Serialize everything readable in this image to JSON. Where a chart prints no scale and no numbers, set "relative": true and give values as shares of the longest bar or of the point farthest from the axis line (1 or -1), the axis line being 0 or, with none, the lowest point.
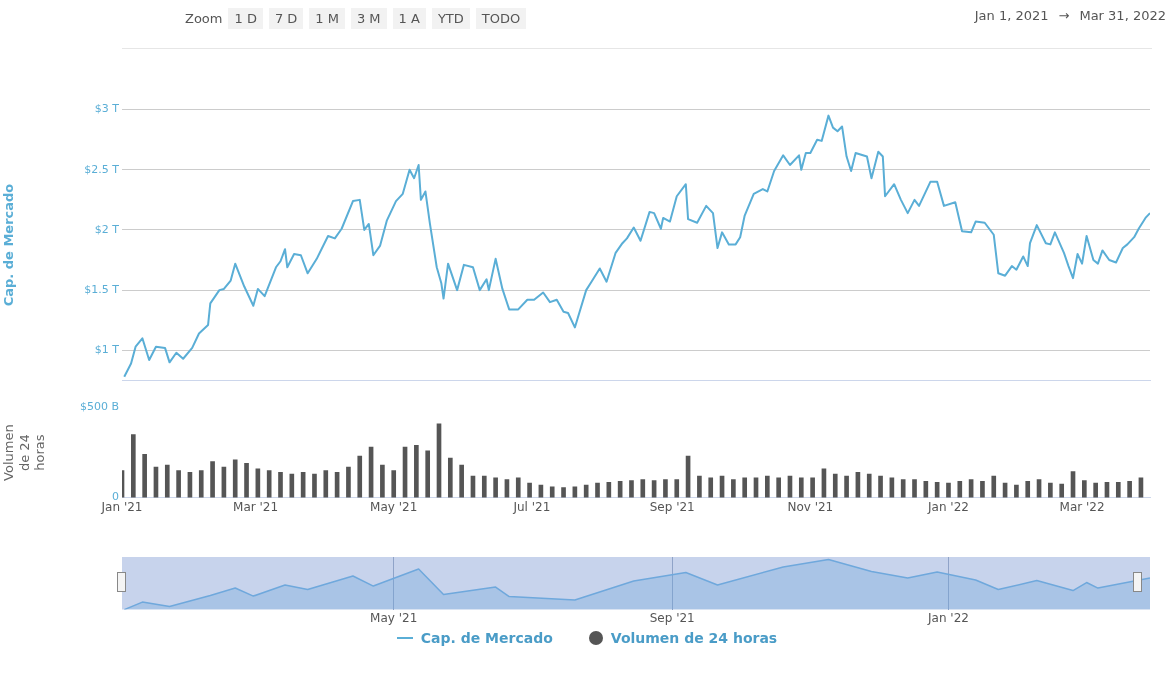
{
  "chart_data": [
    {
      "type": "line",
      "ylabel": "Cap. de Mercado",
      "annotations": [
        "Zoom",
        "1 D",
        "7 D",
        "1 M",
        "3 M",
        "1 A",
        "YTD",
        "TODO",
        "Jan 1, 2021",
        "→",
        "Mar 31, 2022"
      ],
      "xlim": [
        "2021-01-01",
        "2022-03-31"
      ],
      "ylim": [
        0.75,
        3
      ],
      "yticks": [
        {
          "value": 1,
          "label": "$1 T"
        },
        {
          "value": 1.5,
          "label": "$1.5 T"
        },
        {
          "value": 2,
          "label": "$2 T"
        },
        {
          "value": 2.5,
          "label": "$2.5 T"
        },
        {
          "value": 3,
          "label": "$3 T"
        }
      ],
      "grid": "y",
      "tick_labels": "y",
      "legend": "bottom",
      "series": [
        {
          "name": "Cap. de Mercado",
          "color": "#5aaed6",
          "x": [
            "2021-01-02",
            "2021-01-05",
            "2021-01-07",
            "2021-01-10",
            "2021-01-13",
            "2021-01-16",
            "2021-01-20",
            "2021-01-22",
            "2021-01-25",
            "2021-01-28",
            "2021-02-01",
            "2021-02-04",
            "2021-02-08",
            "2021-02-09",
            "2021-02-13",
            "2021-02-15",
            "2021-02-18",
            "2021-02-20",
            "2021-02-24",
            "2021-02-28",
            "2021-03-02",
            "2021-03-05",
            "2021-03-10",
            "2021-03-12",
            "2021-03-14",
            "2021-03-15",
            "2021-03-18",
            "2021-03-21",
            "2021-03-24",
            "2021-03-28",
            "2021-04-02",
            "2021-04-05",
            "2021-04-08",
            "2021-04-13",
            "2021-04-16",
            "2021-04-18",
            "2021-04-20",
            "2021-04-22",
            "2021-04-25",
            "2021-04-28",
            "2021-05-02",
            "2021-05-05",
            "2021-05-08",
            "2021-05-10",
            "2021-05-12",
            "2021-05-13",
            "2021-05-15",
            "2021-05-17",
            "2021-05-20",
            "2021-05-22",
            "2021-05-23",
            "2021-05-25",
            "2021-05-29",
            "2021-06-01",
            "2021-06-05",
            "2021-06-08",
            "2021-06-11",
            "2021-06-12",
            "2021-06-15",
            "2021-06-18",
            "2021-06-21",
            "2021-06-25",
            "2021-06-29",
            "2021-07-02",
            "2021-07-06",
            "2021-07-09",
            "2021-07-12",
            "2021-07-15",
            "2021-07-17",
            "2021-07-20",
            "2021-07-25",
            "2021-07-27",
            "2021-07-31",
            "2021-08-03",
            "2021-08-07",
            "2021-08-10",
            "2021-08-12",
            "2021-08-15",
            "2021-08-18",
            "2021-08-22",
            "2021-08-24",
            "2021-08-27",
            "2021-08-28",
            "2021-08-31",
            "2021-09-03",
            "2021-09-07",
            "2021-09-08",
            "2021-09-12",
            "2021-09-16",
            "2021-09-19",
            "2021-09-21",
            "2021-09-23",
            "2021-09-26",
            "2021-09-29",
            "2021-10-01",
            "2021-10-03",
            "2021-10-07",
            "2021-10-11",
            "2021-10-13",
            "2021-10-16",
            "2021-10-20",
            "2021-10-23",
            "2021-10-27",
            "2021-10-28",
            "2021-10-30",
            "2021-11-01",
            "2021-11-04",
            "2021-11-06",
            "2021-11-09",
            "2021-11-11",
            "2021-11-13",
            "2021-11-15",
            "2021-11-17",
            "2021-11-19",
            "2021-11-21",
            "2021-11-26",
            "2021-11-28",
            "2021-12-01",
            "2021-12-03",
            "2021-12-04",
            "2021-12-08",
            "2021-12-11",
            "2021-12-14",
            "2021-12-17",
            "2021-12-19",
            "2021-12-24",
            "2021-12-27",
            "2021-12-30",
            "2022-01-04",
            "2022-01-07",
            "2022-01-11",
            "2022-01-13",
            "2022-01-17",
            "2022-01-21",
            "2022-01-23",
            "2022-01-26",
            "2022-01-29",
            "2022-01-31",
            "2022-02-03",
            "2022-02-05",
            "2022-02-06",
            "2022-02-09",
            "2022-02-13",
            "2022-02-15",
            "2022-02-17",
            "2022-02-21",
            "2022-02-23",
            "2022-02-25",
            "2022-02-27",
            "2022-03-01",
            "2022-03-03",
            "2022-03-06",
            "2022-03-08",
            "2022-03-10",
            "2022-03-13",
            "2022-03-16",
            "2022-03-19",
            "2022-03-21",
            "2022-03-24",
            "2022-03-26",
            "2022-03-29",
            "2022-03-31"
          ],
          "values": [
            0.78,
            0.89,
            1.03,
            1.1,
            0.92,
            1.03,
            1.02,
            0.9,
            0.98,
            0.93,
            1.02,
            1.14,
            1.21,
            1.39,
            1.5,
            1.51,
            1.58,
            1.72,
            1.53,
            1.37,
            1.51,
            1.45,
            1.69,
            1.74,
            1.84,
            1.69,
            1.8,
            1.79,
            1.64,
            1.76,
            1.95,
            1.93,
            2.01,
            2.24,
            2.25,
            2.0,
            2.05,
            1.79,
            1.87,
            2.08,
            2.24,
            2.3,
            2.5,
            2.43,
            2.54,
            2.25,
            2.32,
            2.05,
            1.69,
            1.56,
            1.43,
            1.72,
            1.5,
            1.71,
            1.69,
            1.5,
            1.59,
            1.5,
            1.76,
            1.51,
            1.34,
            1.34,
            1.42,
            1.42,
            1.48,
            1.4,
            1.42,
            1.32,
            1.31,
            1.19,
            1.5,
            1.56,
            1.68,
            1.57,
            1.81,
            1.89,
            1.93,
            2.02,
            1.91,
            2.15,
            2.14,
            2.01,
            2.1,
            2.07,
            2.28,
            2.38,
            2.09,
            2.06,
            2.2,
            2.14,
            1.85,
            1.98,
            1.88,
            1.88,
            1.94,
            2.12,
            2.3,
            2.34,
            2.32,
            2.49,
            2.62,
            2.54,
            2.62,
            2.5,
            2.64,
            2.64,
            2.75,
            2.74,
            2.95,
            2.85,
            2.82,
            2.86,
            2.61,
            2.49,
            2.64,
            2.61,
            2.43,
            2.65,
            2.61,
            2.28,
            2.38,
            2.25,
            2.14,
            2.25,
            2.2,
            2.4,
            2.4,
            2.2,
            2.23,
            1.99,
            1.98,
            2.07,
            2.06,
            1.96,
            1.64,
            1.62,
            1.7,
            1.67,
            1.78,
            1.7,
            1.89,
            2.04,
            1.89,
            1.88,
            1.98,
            1.81,
            1.7,
            1.6,
            1.8,
            1.72,
            1.95,
            1.75,
            1.72,
            1.83,
            1.75,
            1.73,
            1.85,
            1.88,
            1.94,
            2.01,
            2.1,
            2.14
          ]
        }
      ]
    },
    {
      "type": "bar",
      "ylabel": "Volumen de 24 horas",
      "xlim": [
        "2021-01-01",
        "2022-03-31"
      ],
      "xticks": [
        {
          "value": "2021-01-01",
          "label": "Jan '21"
        },
        {
          "value": "2021-03-01",
          "label": "Mar '21"
        },
        {
          "value": "2021-05-01",
          "label": "May '21"
        },
        {
          "value": "2021-07-01",
          "label": "Jul '21"
        },
        {
          "value": "2021-09-01",
          "label": "Sep '21"
        },
        {
          "value": "2021-11-01",
          "label": "Nov '21"
        },
        {
          "value": "2022-01-01",
          "label": "Jan '22"
        },
        {
          "value": "2022-03-01",
          "label": "Mar '22"
        }
      ],
      "ylim": [
        0,
        500
      ],
      "yticks": [
        0,
        {
          "value": 500,
          "label": "$500 B"
        }
      ],
      "legend": "bottom",
      "series": [
        {
          "name": "Volumen de 24 horas",
          "color": "#555555",
          "x": [
            "2021-01-01",
            "2021-01-06",
            "2021-01-11",
            "2021-01-16",
            "2021-01-21",
            "2021-01-26",
            "2021-01-31",
            "2021-02-05",
            "2021-02-10",
            "2021-02-15",
            "2021-02-20",
            "2021-02-25",
            "2021-03-02",
            "2021-03-07",
            "2021-03-12",
            "2021-03-17",
            "2021-03-22",
            "2021-03-27",
            "2021-04-01",
            "2021-04-06",
            "2021-04-11",
            "2021-04-16",
            "2021-04-21",
            "2021-04-26",
            "2021-05-01",
            "2021-05-06",
            "2021-05-11",
            "2021-05-16",
            "2021-05-21",
            "2021-05-26",
            "2021-05-31",
            "2021-06-05",
            "2021-06-10",
            "2021-06-15",
            "2021-06-20",
            "2021-06-25",
            "2021-06-30",
            "2021-07-05",
            "2021-07-10",
            "2021-07-15",
            "2021-07-20",
            "2021-07-25",
            "2021-07-30",
            "2021-08-04",
            "2021-08-09",
            "2021-08-14",
            "2021-08-19",
            "2021-08-24",
            "2021-08-29",
            "2021-09-03",
            "2021-09-08",
            "2021-09-13",
            "2021-09-18",
            "2021-09-23",
            "2021-09-28",
            "2021-10-03",
            "2021-10-08",
            "2021-10-13",
            "2021-10-18",
            "2021-10-23",
            "2021-10-28",
            "2021-11-02",
            "2021-11-07",
            "2021-11-12",
            "2021-11-17",
            "2021-11-22",
            "2021-11-27",
            "2021-12-02",
            "2021-12-07",
            "2021-12-12",
            "2021-12-17",
            "2021-12-22",
            "2021-12-27",
            "2022-01-01",
            "2022-01-06",
            "2022-01-11",
            "2022-01-16",
            "2022-01-21",
            "2022-01-26",
            "2022-01-31",
            "2022-02-05",
            "2022-02-10",
            "2022-02-15",
            "2022-02-20",
            "2022-02-25",
            "2022-03-02",
            "2022-03-07",
            "2022-03-12",
            "2022-03-17",
            "2022-03-22",
            "2022-03-27"
          ],
          "values": [
            150,
            350,
            240,
            170,
            180,
            150,
            140,
            150,
            200,
            170,
            210,
            190,
            160,
            150,
            140,
            130,
            140,
            130,
            150,
            140,
            170,
            230,
            280,
            180,
            150,
            280,
            290,
            260,
            410,
            220,
            180,
            120,
            120,
            110,
            100,
            110,
            80,
            70,
            60,
            55,
            60,
            70,
            80,
            85,
            90,
            95,
            100,
            95,
            100,
            100,
            230,
            120,
            110,
            120,
            100,
            110,
            110,
            120,
            110,
            120,
            110,
            110,
            160,
            130,
            120,
            140,
            130,
            120,
            110,
            100,
            100,
            90,
            85,
            80,
            90,
            100,
            90,
            120,
            80,
            70,
            90,
            100,
            80,
            75,
            145,
            95,
            80,
            85,
            85,
            90,
            110
          ]
        }
      ]
    },
    {
      "type": "area",
      "relative": true,
      "xlim": [
        "2021-01-01",
        "2022-03-31"
      ],
      "xticks": [
        {
          "value": "2021-05-01",
          "label": "May '21"
        },
        {
          "value": "2021-09-01",
          "label": "Sep '21"
        },
        {
          "value": "2022-01-01",
          "label": "Jan '22"
        }
      ],
      "grid": "x",
      "tick_labels": "x",
      "series": [
        {
          "color": "#6fa8dc",
          "x": [
            "2021-01-02",
            "2021-01-10",
            "2021-01-22",
            "2021-02-09",
            "2021-02-20",
            "2021-02-28",
            "2021-03-14",
            "2021-03-24",
            "2021-04-13",
            "2021-04-22",
            "2021-05-12",
            "2021-05-23",
            "2021-06-15",
            "2021-06-21",
            "2021-07-20",
            "2021-08-15",
            "2021-09-07",
            "2021-09-21",
            "2021-10-20",
            "2021-11-09",
            "2021-11-28",
            "2021-12-14",
            "2021-12-27",
            "2022-01-13",
            "2022-01-23",
            "2022-02-09",
            "2022-02-25",
            "2022-03-03",
            "2022-03-08",
            "2022-03-31"
          ],
          "values": [
            0,
            0.15,
            0.06,
            0.28,
            0.43,
            0.27,
            0.49,
            0.4,
            0.67,
            0.47,
            0.81,
            0.3,
            0.45,
            0.26,
            0.19,
            0.57,
            0.74,
            0.49,
            0.85,
            1,
            0.76,
            0.63,
            0.75,
            0.59,
            0.4,
            0.58,
            0.38,
            0.54,
            0.43,
            0.63
          ]
        }
      ]
    }
  ]
}
